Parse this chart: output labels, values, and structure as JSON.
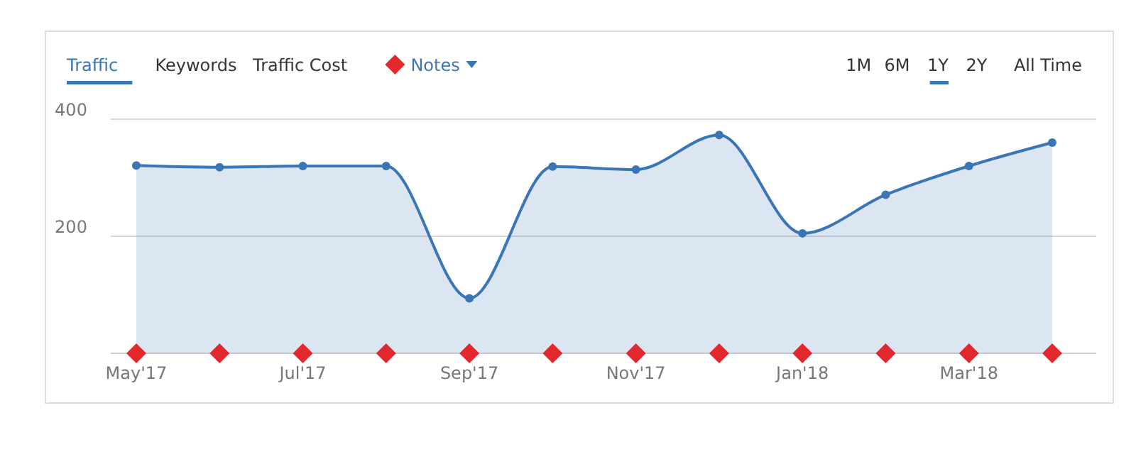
{
  "chart_data": {
    "type": "area",
    "categories": [
      "May'17",
      null,
      "Jul'17",
      null,
      "Sep'17",
      null,
      "Nov'17",
      null,
      "Jan'18",
      null,
      "Mar'18",
      null
    ],
    "series": [
      {
        "color": "#3a75b5",
        "values": [
          321,
          318,
          320,
          320,
          94,
          319,
          314,
          373,
          205,
          271,
          320,
          360
        ],
        "marker": "circle"
      },
      {
        "name": "Notes",
        "type": "scatter",
        "color": "#e2282c",
        "values": [
          0,
          0,
          0,
          0,
          0,
          0,
          0,
          0,
          0,
          0,
          0,
          0
        ],
        "marker": "diamond"
      }
    ],
    "ylim": [
      0,
      400
    ],
    "yticks": [
      {
        "value": 0,
        "label": null
      },
      200,
      400
    ],
    "grid": "y",
    "legend": "top left",
    "annotations": [
      "Traffic",
      "Keywords",
      "Traffic Cost",
      "1M",
      "6M",
      "1Y",
      "2Y",
      "All Time"
    ]
  }
}
